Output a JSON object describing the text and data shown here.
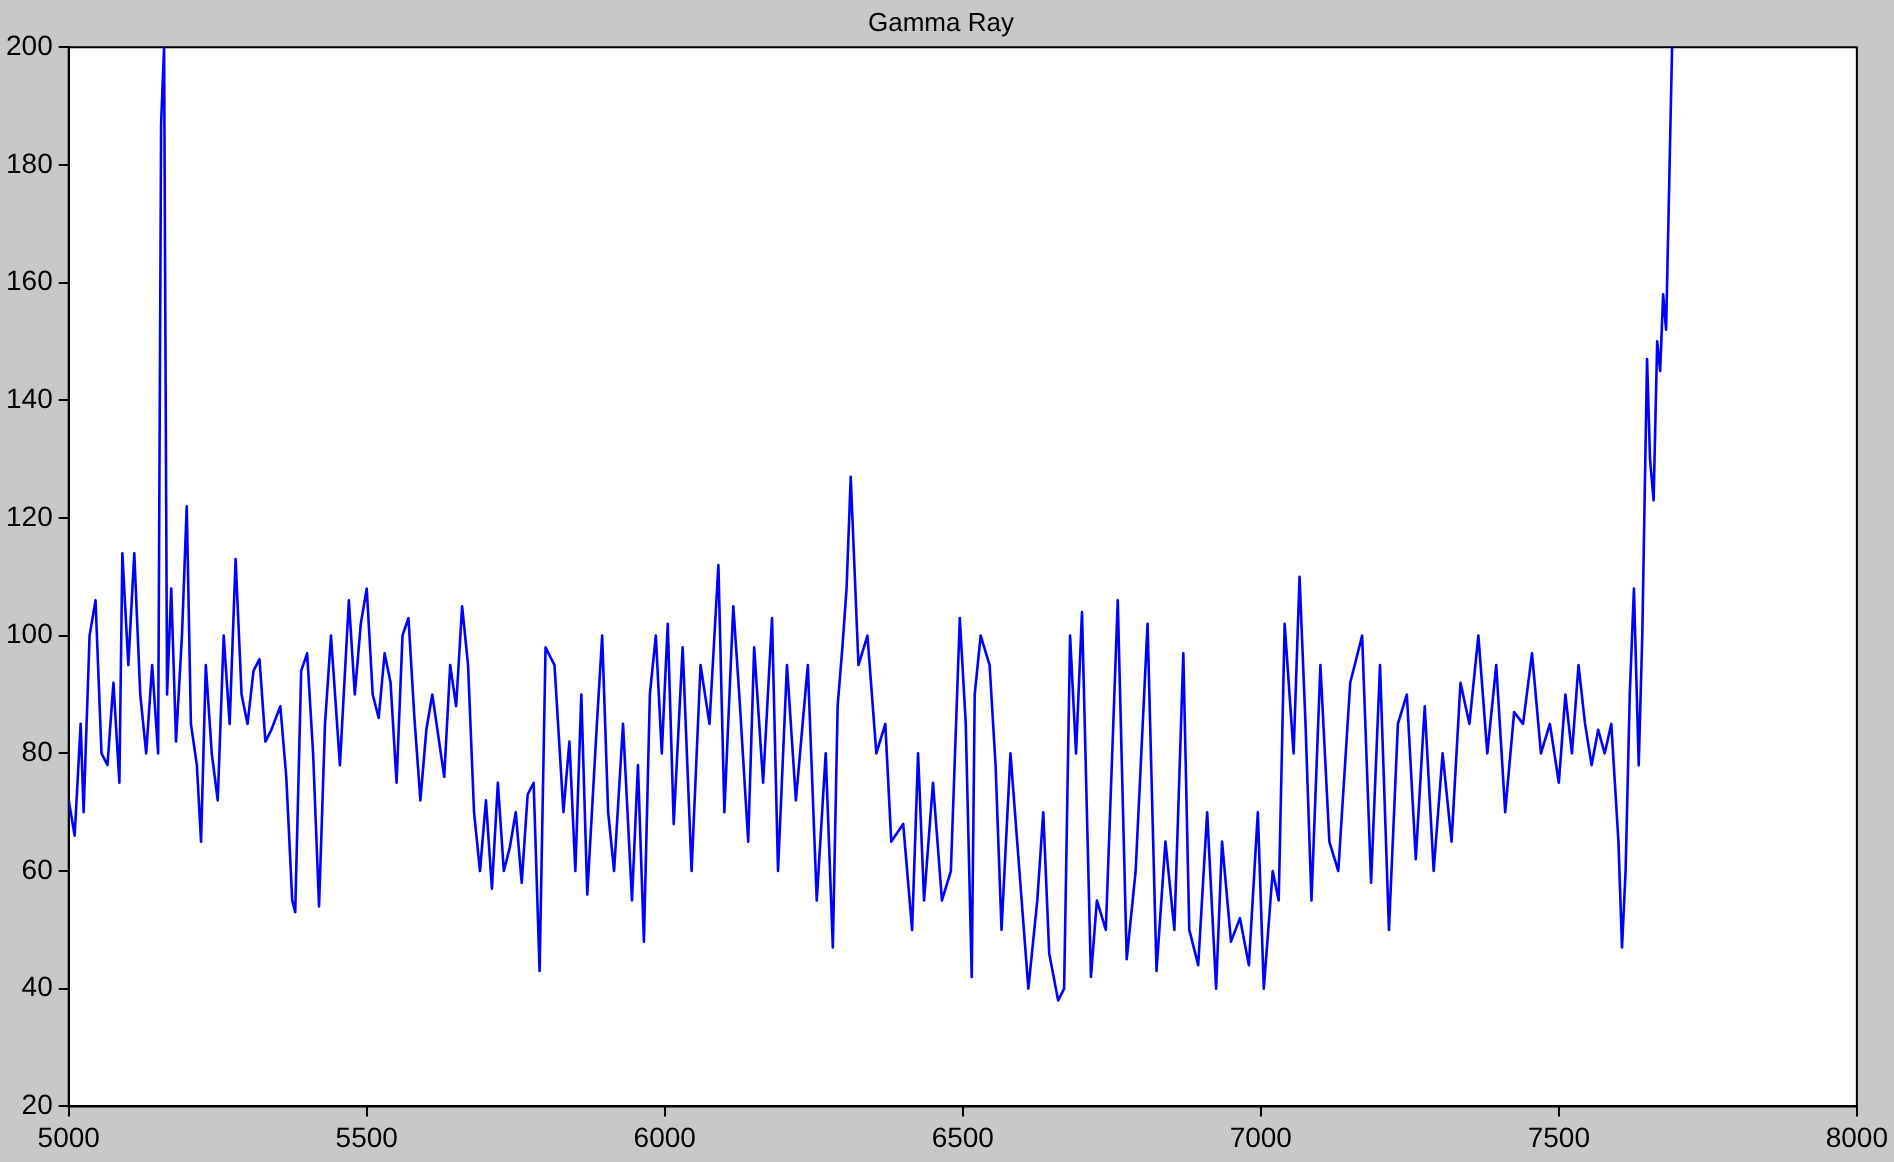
{
  "chart_data": {
    "type": "line",
    "title": "Gamma Ray",
    "xlim": [
      5000,
      8000
    ],
    "xticks": [
      5000,
      5500,
      6000,
      6500,
      7000,
      7500,
      8000
    ],
    "ylim": [
      20,
      200
    ],
    "yticks": [
      20,
      40,
      60,
      80,
      100,
      120,
      140,
      160,
      180,
      200
    ],
    "grid": false,
    "legend": false,
    "marker": "none",
    "line_style": "solid",
    "series": [
      {
        "color": "#0000ff",
        "x": [
          5000,
          5010,
          5020,
          5025,
          5035,
          5045,
          5055,
          5065,
          5075,
          5085,
          5090,
          5100,
          5110,
          5120,
          5130,
          5140,
          5150,
          5155,
          5160,
          5165,
          5172,
          5180,
          5190,
          5198,
          5205,
          5215,
          5222,
          5230,
          5240,
          5250,
          5260,
          5270,
          5280,
          5290,
          5300,
          5310,
          5320,
          5330,
          5340,
          5355,
          5365,
          5375,
          5380,
          5390,
          5400,
          5410,
          5420,
          5430,
          5440,
          5455,
          5470,
          5480,
          5490,
          5500,
          5510,
          5520,
          5530,
          5540,
          5550,
          5560,
          5570,
          5580,
          5590,
          5600,
          5610,
          5630,
          5640,
          5650,
          5660,
          5670,
          5680,
          5690,
          5700,
          5710,
          5720,
          5730,
          5740,
          5750,
          5760,
          5770,
          5780,
          5790,
          5800,
          5815,
          5830,
          5840,
          5850,
          5860,
          5870,
          5885,
          5895,
          5905,
          5915,
          5930,
          5945,
          5955,
          5965,
          5975,
          5985,
          5995,
          6005,
          6015,
          6030,
          6045,
          6060,
          6075,
          6090,
          6100,
          6115,
          6125,
          6140,
          6150,
          6165,
          6180,
          6190,
          6205,
          6220,
          6240,
          6255,
          6270,
          6282,
          6290,
          6298,
          6305,
          6312,
          6325,
          6340,
          6355,
          6370,
          6380,
          6400,
          6415,
          6425,
          6435,
          6450,
          6465,
          6480,
          6495,
          6505,
          6515,
          6520,
          6530,
          6545,
          6555,
          6565,
          6580,
          6595,
          6610,
          6625,
          6635,
          6645,
          6660,
          6670,
          6680,
          6690,
          6700,
          6715,
          6725,
          6740,
          6760,
          6775,
          6790,
          6810,
          6825,
          6840,
          6855,
          6870,
          6880,
          6895,
          6910,
          6925,
          6935,
          6950,
          6965,
          6980,
          6995,
          7005,
          7020,
          7030,
          7040,
          7055,
          7065,
          7075,
          7085,
          7100,
          7115,
          7130,
          7150,
          7170,
          7185,
          7200,
          7215,
          7230,
          7245,
          7260,
          7275,
          7290,
          7305,
          7320,
          7335,
          7350,
          7365,
          7380,
          7395,
          7410,
          7425,
          7440,
          7455,
          7470,
          7485,
          7500,
          7511,
          7522,
          7533,
          7544,
          7555,
          7566,
          7577,
          7588,
          7600,
          7606,
          7612,
          7619,
          7626,
          7634,
          7640,
          7648,
          7653,
          7659,
          7665,
          7670,
          7675,
          7680,
          7690
        ],
        "values": [
          72,
          66,
          85,
          70,
          100,
          106,
          80,
          78,
          92,
          75,
          114,
          95,
          114,
          90,
          80,
          95,
          80,
          187,
          200,
          90,
          108,
          82,
          100,
          122,
          85,
          78,
          65,
          95,
          80,
          72,
          100,
          85,
          113,
          90,
          85,
          94,
          96,
          82,
          84,
          88,
          76,
          55,
          53,
          94,
          97,
          80,
          54,
          85,
          100,
          78,
          106,
          90,
          102,
          108,
          90,
          86,
          97,
          92,
          75,
          100,
          103,
          86,
          72,
          84,
          90,
          76,
          95,
          88,
          105,
          95,
          70,
          60,
          72,
          57,
          75,
          60,
          64,
          70,
          58,
          73,
          75,
          43,
          98,
          95,
          70,
          82,
          60,
          90,
          56,
          83,
          100,
          70,
          60,
          85,
          55,
          78,
          48,
          90,
          100,
          80,
          102,
          68,
          98,
          60,
          95,
          85,
          112,
          70,
          105,
          90,
          65,
          98,
          75,
          103,
          60,
          95,
          72,
          95,
          55,
          80,
          47,
          88,
          98,
          108,
          127,
          95,
          100,
          80,
          85,
          65,
          68,
          50,
          80,
          55,
          75,
          55,
          60,
          103,
          85,
          42,
          90,
          100,
          95,
          78,
          50,
          80,
          60,
          40,
          55,
          70,
          46,
          38,
          40,
          100,
          80,
          104,
          42,
          55,
          50,
          106,
          45,
          60,
          102,
          43,
          65,
          50,
          97,
          50,
          44,
          70,
          40,
          65,
          48,
          52,
          44,
          70,
          40,
          60,
          55,
          102,
          80,
          110,
          85,
          55,
          95,
          65,
          60,
          92,
          100,
          58,
          95,
          50,
          85,
          90,
          62,
          88,
          60,
          80,
          65,
          92,
          85,
          100,
          80,
          95,
          70,
          87,
          85,
          97,
          80,
          85,
          75,
          90,
          80,
          95,
          85,
          78,
          84,
          80,
          85,
          65,
          47,
          60,
          90,
          108,
          78,
          100,
          147,
          130,
          123,
          150,
          145,
          158,
          152,
          200
        ]
      }
    ]
  }
}
